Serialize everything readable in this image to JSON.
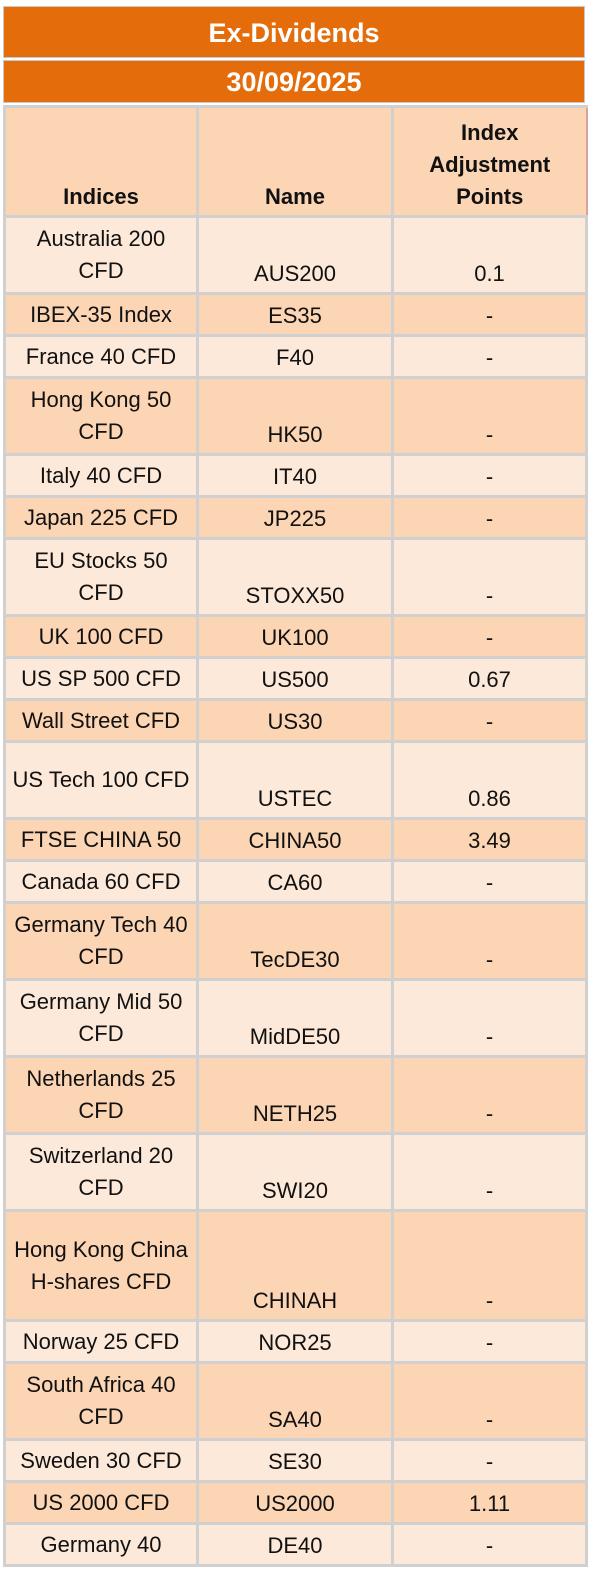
{
  "title": "Ex-Dividends",
  "date": "30/09/2025",
  "columns": {
    "indices": "Indices",
    "name": "Name",
    "points": "Index Adjustment Points"
  },
  "rows": [
    {
      "index": "Australia 200 CFD",
      "name": "AUS200",
      "points": "0.1"
    },
    {
      "index": "IBEX-35 Index",
      "name": "ES35",
      "points": "-"
    },
    {
      "index": "France 40 CFD",
      "name": "F40",
      "points": "-"
    },
    {
      "index": "Hong Kong 50 CFD",
      "name": "HK50",
      "points": "-"
    },
    {
      "index": "Italy 40 CFD",
      "name": "IT40",
      "points": "-"
    },
    {
      "index": "Japan 225 CFD",
      "name": "JP225",
      "points": "-"
    },
    {
      "index": "EU Stocks 50 CFD",
      "name": "STOXX50",
      "points": "-"
    },
    {
      "index": "UK 100 CFD",
      "name": "UK100",
      "points": "-"
    },
    {
      "index": "US SP 500 CFD",
      "name": "US500",
      "points": "0.67"
    },
    {
      "index": "Wall Street CFD",
      "name": "US30",
      "points": "-"
    },
    {
      "index": "US Tech 100 CFD",
      "name": "USTEC",
      "points": "0.86"
    },
    {
      "index": "FTSE CHINA 50",
      "name": "CHINA50",
      "points": "3.49"
    },
    {
      "index": "Canada 60 CFD",
      "name": "CA60",
      "points": "-"
    },
    {
      "index": "Germany Tech 40 CFD",
      "name": "TecDE30",
      "points": "-"
    },
    {
      "index": "Germany Mid 50 CFD",
      "name": "MidDE50",
      "points": "-"
    },
    {
      "index": "Netherlands 25 CFD",
      "name": "NETH25",
      "points": "-"
    },
    {
      "index": "Switzerland 20 CFD",
      "name": "SWI20",
      "points": "-"
    },
    {
      "index": "Hong Kong China H-shares CFD",
      "name": "CHINAH",
      "points": "-"
    },
    {
      "index": "Norway 25 CFD",
      "name": "NOR25",
      "points": "-"
    },
    {
      "index": "South Africa 40 CFD",
      "name": "SA40",
      "points": "-"
    },
    {
      "index": "Sweden 30 CFD",
      "name": "SE30",
      "points": "-"
    },
    {
      "index": "US 2000 CFD",
      "name": "US2000",
      "points": "1.11"
    },
    {
      "index": "Germany 40",
      "name": "DE40",
      "points": "-"
    }
  ],
  "colors": {
    "header_band": "#E46C0A",
    "row_light": "#FDE9D9",
    "row_dark": "#FCD5B4",
    "grid_line": "#D0D0D0"
  }
}
